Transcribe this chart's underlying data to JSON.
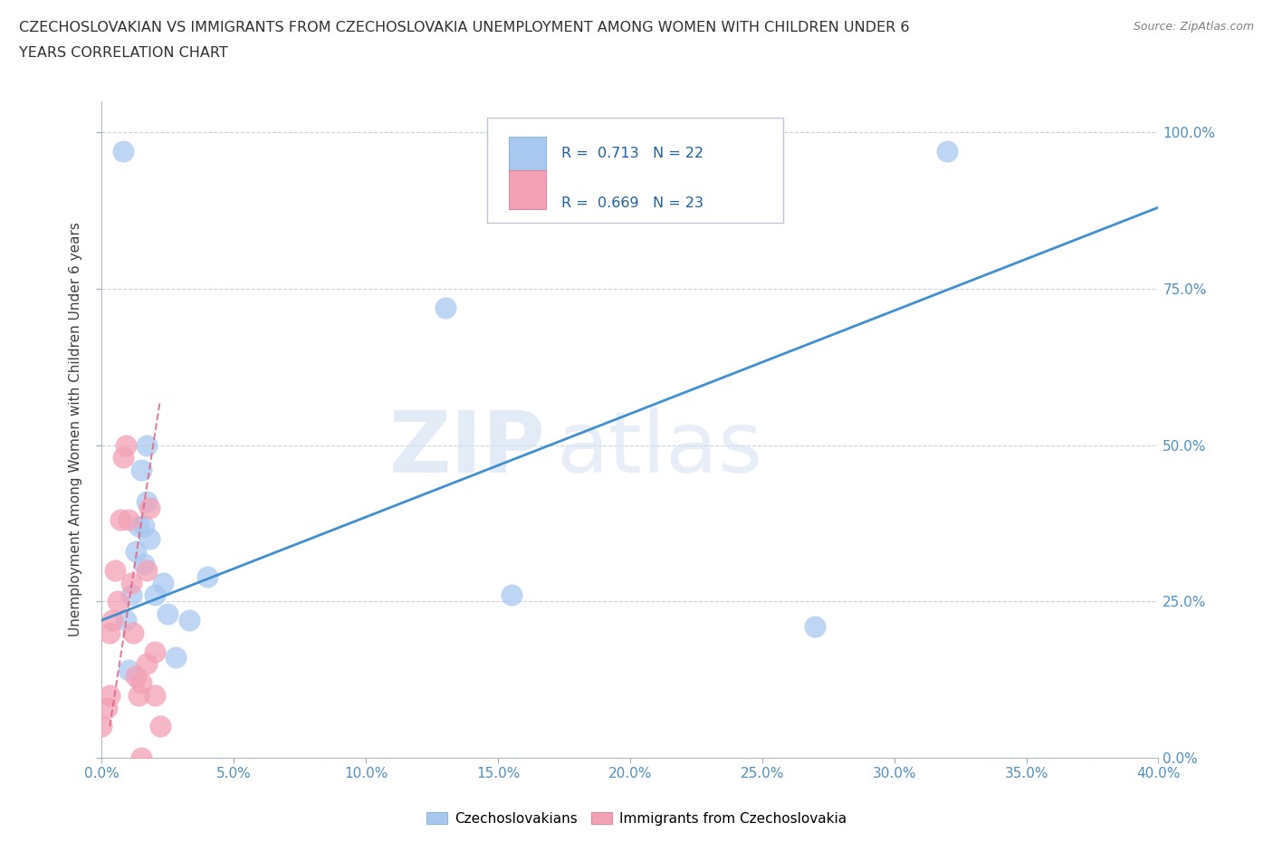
{
  "title_line1": "CZECHOSLOVAKIAN VS IMMIGRANTS FROM CZECHOSLOVAKIA UNEMPLOYMENT AMONG WOMEN WITH CHILDREN UNDER 6",
  "title_line2": "YEARS CORRELATION CHART",
  "source": "Source: ZipAtlas.com",
  "xlabel_ticks": [
    "0.0%",
    "5.0%",
    "10.0%",
    "15.0%",
    "20.0%",
    "25.0%",
    "30.0%",
    "35.0%",
    "40.0%"
  ],
  "ylabel_ticks": [
    "0.0%",
    "25.0%",
    "50.0%",
    "75.0%",
    "100.0%"
  ],
  "ylabel_label": "Unemployment Among Women with Children Under 6 years",
  "xmin": 0.0,
  "xmax": 0.4,
  "ymin": 0.0,
  "ymax": 1.05,
  "blue_color": "#a8c8f0",
  "pink_color": "#f4a0b5",
  "blue_line_color": "#4090d0",
  "pink_line_color": "#e06080",
  "watermark_zip": "ZIP",
  "watermark_atlas": "atlas",
  "legend_r1": "R =  0.713",
  "legend_n1": "N = 22",
  "legend_r2": "R =  0.669",
  "legend_n2": "N = 23",
  "legend_label1": "Czechoslovakians",
  "legend_label2": "Immigrants from Czechoslovakia",
  "blue_x": [
    0.008,
    0.009,
    0.01,
    0.011,
    0.013,
    0.014,
    0.015,
    0.016,
    0.016,
    0.017,
    0.017,
    0.018,
    0.02,
    0.023,
    0.025,
    0.028,
    0.033,
    0.04,
    0.13,
    0.155,
    0.27,
    0.32
  ],
  "blue_y": [
    0.97,
    0.22,
    0.14,
    0.26,
    0.33,
    0.37,
    0.46,
    0.31,
    0.37,
    0.41,
    0.5,
    0.35,
    0.26,
    0.28,
    0.23,
    0.16,
    0.22,
    0.29,
    0.72,
    0.26,
    0.21,
    0.97
  ],
  "pink_x": [
    0.0,
    0.002,
    0.003,
    0.003,
    0.004,
    0.005,
    0.006,
    0.007,
    0.008,
    0.009,
    0.01,
    0.011,
    0.012,
    0.013,
    0.014,
    0.015,
    0.015,
    0.017,
    0.017,
    0.018,
    0.02,
    0.02,
    0.022
  ],
  "pink_y": [
    0.05,
    0.08,
    0.1,
    0.2,
    0.22,
    0.3,
    0.25,
    0.38,
    0.48,
    0.5,
    0.38,
    0.28,
    0.2,
    0.13,
    0.1,
    0.0,
    0.12,
    0.15,
    0.3,
    0.4,
    0.1,
    0.17,
    0.05
  ],
  "blue_line_x": [
    0.0,
    0.4
  ],
  "blue_line_y": [
    0.22,
    0.88
  ],
  "pink_line_x": [
    0.003,
    0.022
  ],
  "pink_line_y": [
    0.05,
    0.57
  ]
}
